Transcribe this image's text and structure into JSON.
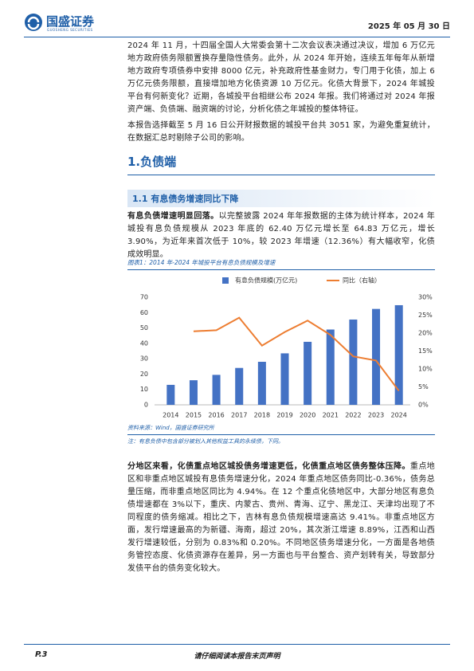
{
  "header": {
    "logo": "国盛证券",
    "logo_en": "GUOSHENG SECURITIES",
    "date": "2025 年 05 月 30 日"
  },
  "paragraphs": [
    {
      "text": "2024 年 11 月，十四届全国人大常委会第十二次会议表决通过决议，增加 6 万亿元地方政府债务限额置换存量隐性债务。此外，从 2024 年开始，连续五年每年从新增地方政府专项债券中安排 8000 亿元，补充政府性基金财力，专门用于化债，加上 6 万亿元债务限额，直接增加地方化债资源 10 万亿元。化债大背景下，2024 年城投平台有何新变化？近期，各城投平台相继公布 2024 年报。我们将通过对 2024 年报资产端、负债端、融资端的讨论，分析化债之年城投的整体特征。"
    },
    {
      "text": "本报告选择截至 5 月 16 日公开财报数据的城投平台共 3051 家，为避免重复统计，在数据汇总时剔除子公司的影响。"
    },
    {
      "lead": "有息负债增速明显回落。",
      "text": "以完整披露 2024 年年报数据的主体为统计样本，2024 年城投有息负债规模从 2023 年底的 62.40 万亿元增长至 64.83 万亿元，增长 3.90%，为近年来首次低于 10%，较 2023 年增速（12.36%）有大幅收窄，化债成效明显。"
    },
    {
      "lead": "分地区来看，化债重点地区城投债务增速更低，化债重点地区债务整体压降。",
      "text": "重点地区和非重点地区城投有息债务增速分化，2024 年重点地区债务同比-0.36%，债务总量压缩，而非重点地区同比为 4.94%。在 12 个重点化债地区中，大部分地区有息负债增速都在 3%以下，重庆、内蒙古、贵州、青海、辽宁、黑龙江、天津均出现了不同程度的债务缩减。相比之下，吉林有息负债规模增速高达 9.41%。非重点地区方面，发行增速最高的为新疆、海南，超过 20%，其次浙江增速 8.89%，江西和山西发行增速较低，分别为 0.83%和 0.20%。不同地区债务增速分化，一方面是各地债务管控态度、化债资源存在差异，另一方面也与平台整合、资产划转有关，导致部分发债平台的债务变化较大。"
    }
  ],
  "section": "1.负债端",
  "subsection": "1.1 有息债务增速同比下降",
  "figure": {
    "caption": "图表1：2014 年-2024 年城投平台有息负债规模及增速",
    "source": "资料来源：Wind，国盛证券研究所",
    "note": "注：有息负债中包含部分被划入其他权益工具的永续债，下同。"
  },
  "chart_data": {
    "type": "bar",
    "categories": [
      "2014",
      "2015",
      "2016",
      "2017",
      "2018",
      "2019",
      "2020",
      "2021",
      "2022",
      "2023",
      "2024"
    ],
    "series": [
      {
        "name": "有息负债规模(万亿元)",
        "color": "#4472c4",
        "values": [
          13,
          16,
          19.5,
          24,
          28,
          33.5,
          41,
          49,
          55.5,
          62.4,
          64.83
        ]
      },
      {
        "name": "同比（右轴）",
        "color": "#ed7d31",
        "axis": "y2",
        "values": [
          null,
          20.5,
          20.8,
          24.3,
          16.5,
          20.3,
          23.5,
          19.5,
          13.5,
          12.36,
          3.9
        ]
      }
    ],
    "ylim": [
      0,
      70
    ],
    "yticks": [
      0,
      10,
      20,
      30,
      40,
      50,
      60,
      70
    ],
    "y2lim": [
      0,
      30
    ],
    "y2ticks": [
      {
        "value": 0,
        "label": "0%"
      },
      {
        "value": 5,
        "label": "5%"
      },
      {
        "value": 10,
        "label": "10%"
      },
      {
        "value": 15,
        "label": "15%"
      },
      {
        "value": 20,
        "label": "20%"
      },
      {
        "value": 25,
        "label": "25%"
      },
      {
        "value": 30,
        "label": "30%"
      }
    ]
  },
  "footer": {
    "page": "P.3",
    "disclaimer": "请仔细阅读本报告末页声明"
  }
}
